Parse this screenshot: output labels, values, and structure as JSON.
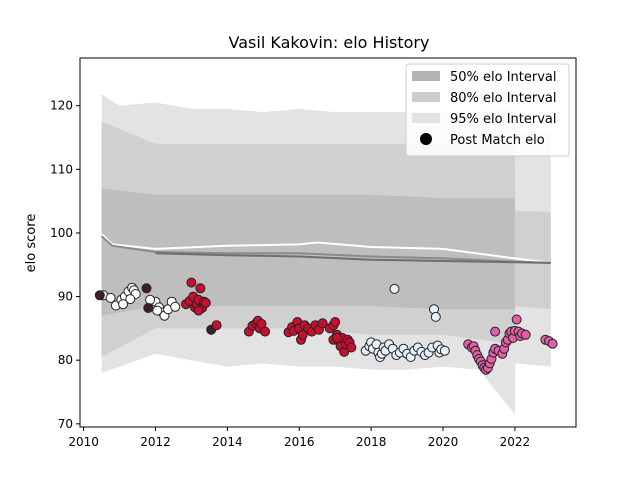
{
  "chart_data": {
    "type": "scatter",
    "title": "Vasil Kakovin: elo History",
    "xlabel": "",
    "ylabel": "elo score",
    "xlim": [
      2009.9,
      2023.7
    ],
    "ylim": [
      69.5,
      127.5
    ],
    "x_ticks": [
      2010,
      2012,
      2014,
      2016,
      2018,
      2020,
      2022
    ],
    "y_ticks": [
      70,
      80,
      90,
      100,
      110,
      120
    ],
    "grid": false,
    "legend_placement": "top-right",
    "legend": [
      {
        "label": "50% elo Interval",
        "kind": "band",
        "color": "#b3b3b3"
      },
      {
        "label": "80% elo Interval",
        "kind": "band",
        "color": "#cccccc"
      },
      {
        "label": "95% elo Interval",
        "kind": "band",
        "color": "#e3e3e3"
      },
      {
        "label": "Post Match elo",
        "kind": "marker",
        "color": "#000000"
      }
    ],
    "bands": [
      {
        "name": "95% elo Interval",
        "color": "#e3e3e3",
        "x": [
          2010.5,
          2011,
          2012,
          2013,
          2014,
          2015,
          2016,
          2017,
          2018,
          2019,
          2020,
          2021,
          2022,
          2022.01,
          2023
        ],
        "upper": [
          121.8,
          120,
          120.5,
          119.5,
          119.5,
          119,
          119.5,
          119,
          119,
          119,
          119,
          119,
          119.5,
          116,
          116
        ],
        "lower": [
          78,
          79,
          81,
          80,
          79,
          79.5,
          79,
          79,
          78.5,
          78.5,
          79,
          78.5,
          71.5,
          79.5,
          79
        ]
      },
      {
        "name": "80% elo Interval",
        "color": "#d0d0d0",
        "x": [
          2010.5,
          2012,
          2014,
          2016,
          2018,
          2020,
          2022,
          2022.01,
          2023
        ],
        "upper": [
          117.5,
          114,
          114,
          114,
          114,
          114,
          114,
          103.5,
          103.3
        ],
        "lower": [
          80.5,
          85,
          85,
          85,
          84,
          84,
          82.5,
          88.5,
          88
        ]
      },
      {
        "name": "50% elo Interval",
        "color": "#bebebe",
        "x": [
          2010.5,
          2012,
          2014,
          2016,
          2018,
          2020,
          2022
        ],
        "upper": [
          107,
          106,
          106,
          106,
          106,
          105.5,
          105.5
        ],
        "lower": [
          87,
          88.5,
          88.5,
          88.5,
          88.5,
          88,
          88
        ]
      }
    ],
    "lines": [
      {
        "name": "upper-trace",
        "color": "#ffffff",
        "x": [
          2010.5,
          2010.8,
          2012,
          2014,
          2016,
          2016.5,
          2018,
          2020,
          2022,
          2023
        ],
        "y": [
          99.8,
          98.2,
          97.5,
          98,
          98.2,
          98.5,
          97.8,
          97.5,
          96,
          95.3
        ]
      },
      {
        "name": "middle-trace",
        "color": "#8a8a8a",
        "x": [
          2010.5,
          2010.8,
          2012,
          2014,
          2016,
          2018,
          2020,
          2022,
          2023
        ],
        "y": [
          99.5,
          98,
          97,
          96.8,
          96.8,
          96.3,
          96,
          95.5,
          95.3
        ]
      },
      {
        "name": "lower-trace",
        "color": "#6e6e6e",
        "x": [
          2012,
          2014,
          2016,
          2018,
          2020,
          2022,
          2023
        ],
        "y": [
          96.8,
          96.5,
          96.3,
          95.8,
          95.6,
          95.4,
          95.3
        ]
      }
    ],
    "point_groups": [
      {
        "face": "#ffffff",
        "points": [
          [
            2010.55,
            90.2
          ],
          [
            2010.75,
            89.8
          ],
          [
            2010.9,
            88.6
          ],
          [
            2011.05,
            89.5
          ],
          [
            2011.15,
            90.0
          ],
          [
            2011.25,
            90.8
          ],
          [
            2011.35,
            91.4
          ],
          [
            2011.4,
            91.0
          ],
          [
            2011.45,
            90.4
          ],
          [
            2011.3,
            89.6
          ],
          [
            2011.1,
            88.8
          ],
          [
            2011.9,
            88.8
          ],
          [
            2012.0,
            89.2
          ],
          [
            2012.1,
            88.3
          ],
          [
            2012.2,
            87.5
          ],
          [
            2012.25,
            87.0
          ],
          [
            2012.35,
            88.0
          ],
          [
            2012.45,
            89.2
          ],
          [
            2012.55,
            88.4
          ],
          [
            2012.05,
            87.8
          ],
          [
            2011.85,
            89.5
          ]
        ]
      },
      {
        "face": "#3d1f2b",
        "points": [
          [
            2010.45,
            90.2
          ],
          [
            2011.75,
            91.3
          ],
          [
            2011.8,
            88.2
          ],
          [
            2013.55,
            84.8
          ]
        ]
      },
      {
        "face": "#c8102e",
        "points": [
          [
            2012.85,
            88.8
          ],
          [
            2012.95,
            89.3
          ],
          [
            2013.0,
            92.2
          ],
          [
            2013.05,
            90.0
          ],
          [
            2013.1,
            88.3
          ],
          [
            2013.15,
            88.8
          ],
          [
            2013.2,
            89.5
          ],
          [
            2013.25,
            91.3
          ],
          [
            2013.3,
            88.2
          ],
          [
            2013.35,
            89.2
          ],
          [
            2013.4,
            89.0
          ],
          [
            2013.2,
            87.8
          ],
          [
            2013.7,
            85.5
          ],
          [
            2014.6,
            84.5
          ],
          [
            2014.7,
            85.4
          ],
          [
            2014.8,
            85.8
          ],
          [
            2014.85,
            86.2
          ],
          [
            2014.9,
            85.0
          ],
          [
            2014.95,
            85.7
          ],
          [
            2015.05,
            84.5
          ],
          [
            2015.7,
            84.4
          ],
          [
            2015.8,
            85.2
          ],
          [
            2015.85,
            84.6
          ],
          [
            2015.95,
            86.0
          ],
          [
            2016.0,
            85.0
          ],
          [
            2016.05,
            83.2
          ],
          [
            2016.1,
            84.0
          ],
          [
            2016.15,
            85.5
          ],
          [
            2016.25,
            85.0
          ],
          [
            2016.35,
            84.5
          ],
          [
            2016.45,
            85.5
          ],
          [
            2016.55,
            84.8
          ],
          [
            2016.65,
            85.8
          ],
          [
            2016.85,
            85.0
          ],
          [
            2016.95,
            85.5
          ],
          [
            2017.0,
            86.0
          ],
          [
            2016.95,
            83.2
          ],
          [
            2017.05,
            84.0
          ],
          [
            2017.1,
            83.0
          ],
          [
            2017.15,
            82.2
          ],
          [
            2017.2,
            83.5
          ],
          [
            2017.25,
            81.3
          ],
          [
            2017.3,
            82.5
          ],
          [
            2017.35,
            83.2
          ],
          [
            2017.4,
            82.8
          ],
          [
            2017.45,
            82.0
          ],
          [
            2017.05,
            83.5
          ]
        ]
      },
      {
        "face": "#e8f2fb",
        "points": [
          [
            2017.85,
            81.5
          ],
          [
            2017.95,
            82.2
          ],
          [
            2018.0,
            82.8
          ],
          [
            2018.05,
            81.8
          ],
          [
            2018.15,
            82.5
          ],
          [
            2018.2,
            81.2
          ],
          [
            2018.25,
            80.5
          ],
          [
            2018.3,
            81.0
          ],
          [
            2018.35,
            82.0
          ],
          [
            2018.4,
            81.5
          ],
          [
            2018.5,
            82.5
          ],
          [
            2018.6,
            81.8
          ],
          [
            2018.65,
            91.2
          ],
          [
            2018.7,
            80.8
          ],
          [
            2018.8,
            81.2
          ],
          [
            2018.9,
            81.8
          ],
          [
            2019.0,
            81.0
          ],
          [
            2019.1,
            80.5
          ],
          [
            2019.2,
            81.5
          ],
          [
            2019.3,
            82.0
          ],
          [
            2019.4,
            81.3
          ],
          [
            2019.5,
            80.8
          ],
          [
            2019.6,
            81.2
          ],
          [
            2019.7,
            82.0
          ],
          [
            2019.75,
            88.0
          ],
          [
            2019.8,
            86.8
          ],
          [
            2019.85,
            82.3
          ],
          [
            2019.9,
            81.2
          ],
          [
            2019.95,
            81.7
          ],
          [
            2020.05,
            81.5
          ]
        ]
      },
      {
        "face": "#e25fa8",
        "points": [
          [
            2020.7,
            82.5
          ],
          [
            2020.8,
            82.0
          ],
          [
            2020.85,
            82.2
          ],
          [
            2020.9,
            81.5
          ],
          [
            2020.95,
            80.8
          ],
          [
            2021.0,
            80.2
          ],
          [
            2021.05,
            79.8
          ],
          [
            2021.1,
            79.2
          ],
          [
            2021.15,
            78.8
          ],
          [
            2021.2,
            78.5
          ],
          [
            2021.25,
            78.8
          ],
          [
            2021.3,
            79.5
          ],
          [
            2021.35,
            80.2
          ],
          [
            2021.4,
            81.2
          ],
          [
            2021.45,
            81.8
          ],
          [
            2021.45,
            84.5
          ],
          [
            2021.55,
            81.5
          ],
          [
            2021.65,
            81.0
          ],
          [
            2021.7,
            81.8
          ],
          [
            2021.75,
            82.8
          ],
          [
            2021.8,
            83.2
          ],
          [
            2021.85,
            84.2
          ],
          [
            2021.9,
            84.5
          ],
          [
            2021.95,
            83.5
          ],
          [
            2022.0,
            84.6
          ],
          [
            2022.05,
            86.4
          ],
          [
            2022.1,
            84.5
          ],
          [
            2022.15,
            83.8
          ],
          [
            2022.2,
            84.2
          ],
          [
            2022.3,
            84.0
          ],
          [
            2022.85,
            83.2
          ],
          [
            2022.95,
            83.0
          ],
          [
            2023.05,
            82.6
          ]
        ]
      }
    ]
  }
}
